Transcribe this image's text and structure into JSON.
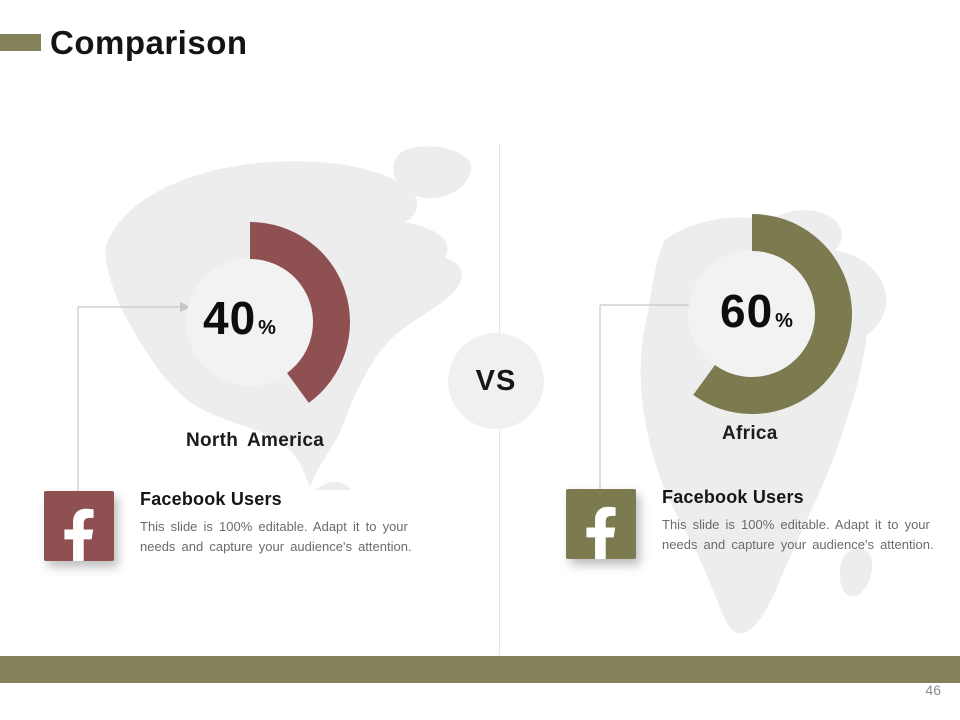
{
  "slide": {
    "title": "Comparison",
    "vs_label": "VS",
    "page_number": "46",
    "accent_olive": "#82815a",
    "divider_color": "#e4e4e4",
    "map_color": "#ededee",
    "donut_hole_color": "#f2f2f2"
  },
  "chart_data": [
    {
      "type": "donut",
      "label": "North America",
      "value": 40,
      "unit": "%",
      "color": "#8e5051",
      "icon": "facebook-icon",
      "heading": "Facebook Users",
      "description": "This slide is 100% editable. Adapt it to your needs and capture your audience's attention."
    },
    {
      "type": "donut",
      "label": "Africa",
      "value": 60,
      "unit": "%",
      "color": "#7c7a4f",
      "icon": "facebook-icon",
      "heading": "Facebook Users",
      "description": "This slide is 100% editable. Adapt it to your needs and capture your audience's attention."
    }
  ]
}
